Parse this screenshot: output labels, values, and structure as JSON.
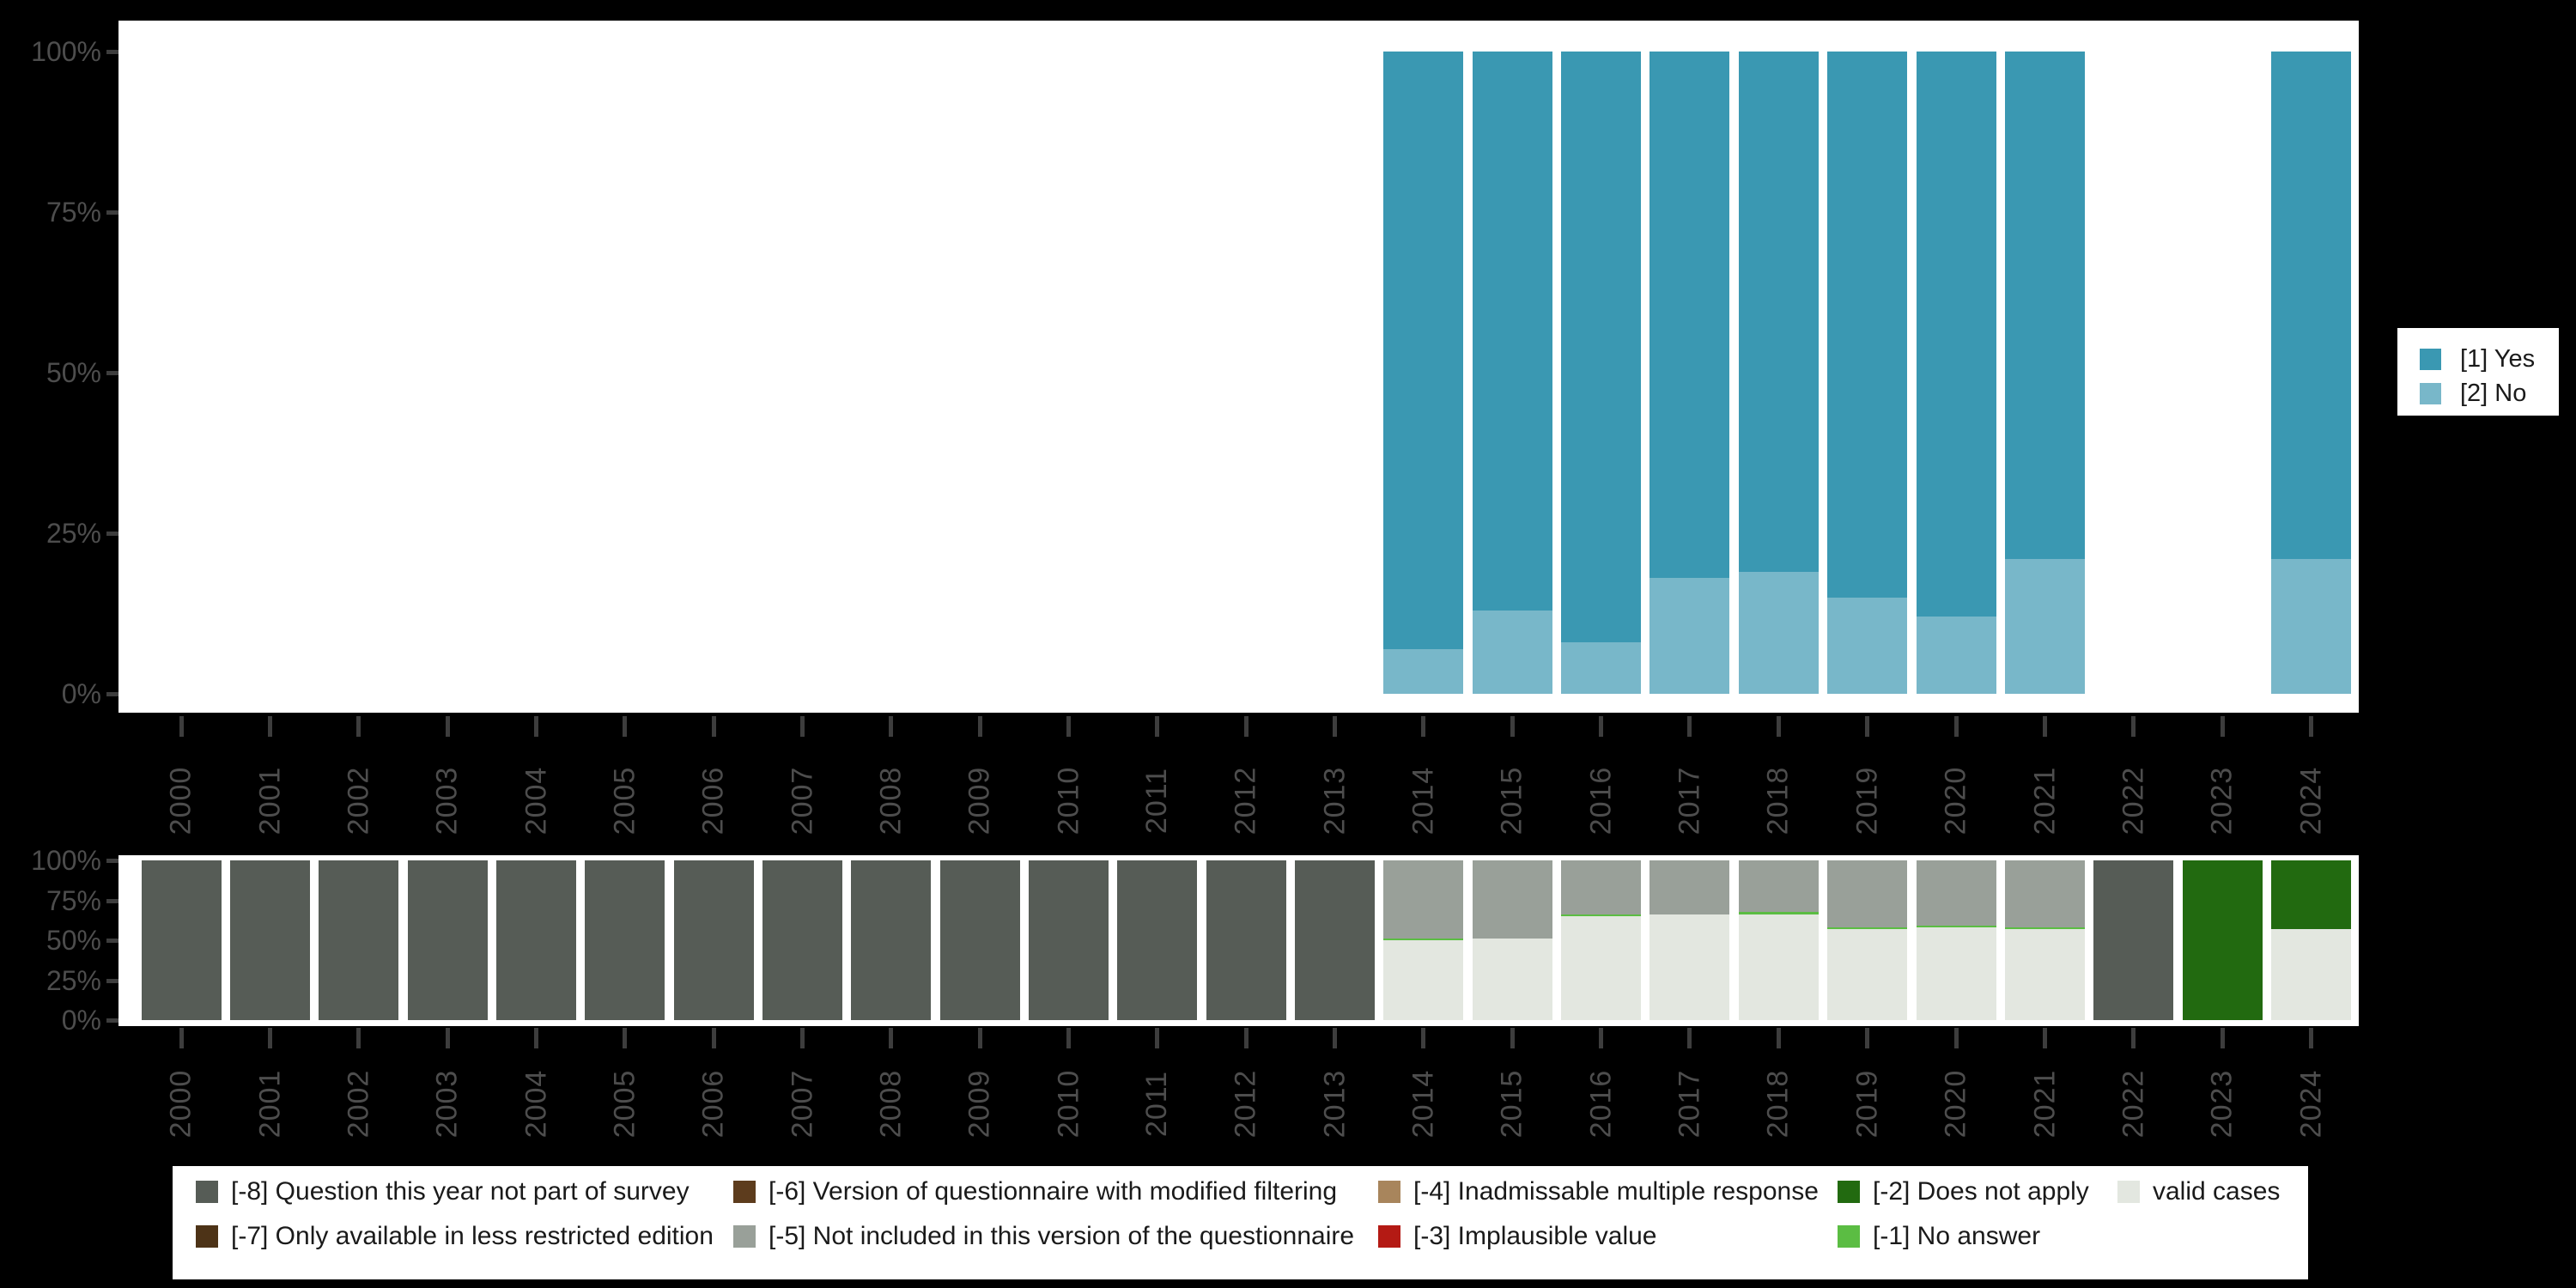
{
  "colors": {
    "background": "#000000",
    "plot_bg": "#ffffff",
    "axis_label": "#4d4d4d",
    "tick": "#3d3d3d",
    "legend_text": "#1a1a1a",
    "yes": "#3a98b2",
    "no": "#78b7c9",
    "m8": "#565c56",
    "m7": "#4d3317",
    "m6": "#5d3c1d",
    "m5": "#99a099",
    "m4": "#a8855c",
    "m3": "#b41a14",
    "m2": "#226a10",
    "m1": "#5bbd43",
    "valid": "#e3e7e0"
  },
  "right_legend": {
    "items": [
      {
        "label": "[1] Yes",
        "color_key": "yes"
      },
      {
        "label": "[2] No",
        "color_key": "no"
      }
    ]
  },
  "bottom_legend": {
    "columns": [
      {
        "items": [
          {
            "label": "[-8] Question this year not part of survey",
            "color_key": "m8"
          },
          {
            "label": "[-7] Only available in less restricted edition",
            "color_key": "m7"
          }
        ]
      },
      {
        "items": [
          {
            "label": "[-6] Version of questionnaire with modified filtering",
            "color_key": "m6"
          },
          {
            "label": "[-5] Not included in this version of the questionnaire",
            "color_key": "m5"
          }
        ]
      },
      {
        "items": [
          {
            "label": "[-4] Inadmissable multiple response",
            "color_key": "m4"
          },
          {
            "label": "[-3] Implausible value",
            "color_key": "m3"
          }
        ]
      },
      {
        "items": [
          {
            "label": "[-2] Does not apply",
            "color_key": "m2"
          },
          {
            "label": "[-1] No answer",
            "color_key": "m1"
          }
        ]
      },
      {
        "items": [
          {
            "label": "valid cases",
            "color_key": "valid"
          }
        ]
      }
    ]
  },
  "chart_data": [
    {
      "type": "bar",
      "stacked": true,
      "unit": "percent",
      "title": "",
      "legend_position": "right",
      "ylim": [
        0,
        100
      ],
      "y_ticks": [
        "100%",
        "75%",
        "50%",
        "25%",
        "0%"
      ],
      "categories": [
        "2000",
        "2001",
        "2002",
        "2003",
        "2004",
        "2005",
        "2006",
        "2007",
        "2008",
        "2009",
        "2010",
        "2011",
        "2012",
        "2013",
        "2014",
        "2015",
        "2016",
        "2017",
        "2018",
        "2019",
        "2020",
        "2021",
        "2022",
        "2023",
        "2024"
      ],
      "stack_order_bottom_to_top": [
        "[2] No",
        "[1] Yes"
      ],
      "series": [
        {
          "name": "[1] Yes",
          "color_key": "yes",
          "values": [
            null,
            null,
            null,
            null,
            null,
            null,
            null,
            null,
            null,
            null,
            null,
            null,
            null,
            null,
            93,
            87,
            92,
            82,
            81,
            85,
            88,
            79,
            null,
            null,
            79
          ]
        },
        {
          "name": "[2] No",
          "color_key": "no",
          "values": [
            null,
            null,
            null,
            null,
            null,
            null,
            null,
            null,
            null,
            null,
            null,
            null,
            null,
            null,
            7,
            13,
            8,
            18,
            19,
            15,
            12,
            21,
            null,
            null,
            21
          ]
        }
      ]
    },
    {
      "type": "bar",
      "stacked": true,
      "unit": "percent",
      "title": "",
      "legend_position": "bottom",
      "ylim": [
        0,
        100
      ],
      "y_ticks": [
        "100%",
        "75%",
        "50%",
        "25%",
        "0%"
      ],
      "categories": [
        "2000",
        "2001",
        "2002",
        "2003",
        "2004",
        "2005",
        "2006",
        "2007",
        "2008",
        "2009",
        "2010",
        "2011",
        "2012",
        "2013",
        "2014",
        "2015",
        "2016",
        "2017",
        "2018",
        "2019",
        "2020",
        "2021",
        "2022",
        "2023",
        "2024"
      ],
      "stack_order_bottom_to_top": [
        "valid cases",
        "[-1] No answer",
        "[-5] Not included in this version of the questionnaire",
        "[-4] Inadmissable multiple response",
        "[-3] Implausible value",
        "[-2] Does not apply",
        "[-6] Version of questionnaire with modified filtering",
        "[-7] Only available in less restricted edition",
        "[-8] Question this year not part of survey"
      ],
      "series": [
        {
          "name": "[-8] Question this year not part of survey",
          "color_key": "m8",
          "values": [
            100,
            100,
            100,
            100,
            100,
            100,
            100,
            100,
            100,
            100,
            100,
            100,
            100,
            100,
            null,
            null,
            null,
            null,
            null,
            null,
            null,
            null,
            100,
            null,
            null
          ]
        },
        {
          "name": "[-7] Only available in less restricted edition",
          "color_key": "m7",
          "values": [
            null,
            null,
            null,
            null,
            null,
            null,
            null,
            null,
            null,
            null,
            null,
            null,
            null,
            null,
            null,
            null,
            null,
            null,
            null,
            null,
            null,
            null,
            null,
            null,
            null
          ]
        },
        {
          "name": "[-6] Version of questionnaire with modified filtering",
          "color_key": "m6",
          "values": [
            null,
            null,
            null,
            null,
            null,
            null,
            null,
            null,
            null,
            null,
            null,
            null,
            null,
            null,
            null,
            null,
            null,
            null,
            null,
            null,
            null,
            null,
            null,
            null,
            null
          ]
        },
        {
          "name": "[-5] Not included in this version of the questionnaire",
          "color_key": "m5",
          "values": [
            null,
            null,
            null,
            null,
            null,
            null,
            null,
            null,
            null,
            null,
            null,
            null,
            null,
            null,
            49,
            49,
            34,
            34,
            32,
            42,
            41,
            42,
            null,
            null,
            null
          ]
        },
        {
          "name": "[-4] Inadmissable multiple response",
          "color_key": "m4",
          "values": [
            null,
            null,
            null,
            null,
            null,
            null,
            null,
            null,
            null,
            null,
            null,
            null,
            null,
            null,
            null,
            null,
            null,
            null,
            null,
            null,
            null,
            null,
            null,
            null,
            null
          ]
        },
        {
          "name": "[-3] Implausible value",
          "color_key": "m3",
          "values": [
            null,
            null,
            null,
            null,
            null,
            null,
            null,
            null,
            null,
            null,
            null,
            null,
            null,
            null,
            null,
            null,
            null,
            null,
            null,
            null,
            null,
            null,
            null,
            null,
            null
          ]
        },
        {
          "name": "[-2] Does not apply",
          "color_key": "m2",
          "values": [
            null,
            null,
            null,
            null,
            null,
            null,
            null,
            null,
            null,
            null,
            null,
            null,
            null,
            null,
            null,
            null,
            null,
            null,
            null,
            null,
            null,
            null,
            null,
            100,
            43
          ]
        },
        {
          "name": "[-1] No answer",
          "color_key": "m1",
          "values": [
            null,
            null,
            null,
            null,
            null,
            null,
            null,
            null,
            null,
            null,
            null,
            null,
            null,
            null,
            1,
            null,
            1,
            null,
            2,
            1,
            1,
            1,
            null,
            null,
            null
          ]
        },
        {
          "name": "valid cases",
          "color_key": "valid",
          "values": [
            null,
            null,
            null,
            null,
            null,
            null,
            null,
            null,
            null,
            null,
            null,
            null,
            null,
            null,
            50,
            51,
            65,
            66,
            66,
            57,
            58,
            57,
            null,
            null,
            57
          ]
        }
      ]
    }
  ]
}
